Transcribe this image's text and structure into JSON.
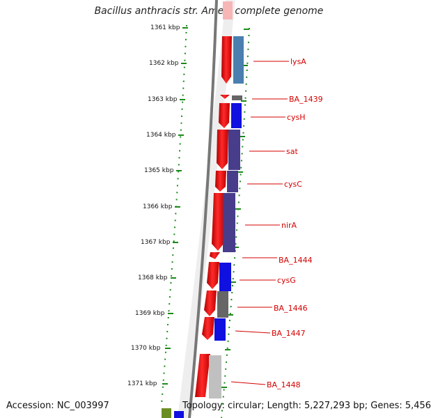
{
  "title": "Bacillus anthracis str. Ames, complete genome",
  "footer": {
    "accession": "Accession: NC_003997",
    "stats": "Topology: circular; Length: 5,227,293 bp; Genes: 5,456"
  },
  "ruler_ticks": [
    "1361 kbp",
    "1362 kbp",
    "1363 kbp",
    "1364 kbp",
    "1365 kbp",
    "1366 kbp",
    "1367 kbp",
    "1368 kbp",
    "1369 kbp",
    "1370 kbp",
    "1371 kbp"
  ],
  "genes": [
    {
      "name": "lysA",
      "color": "#4a7fb0"
    },
    {
      "name": "BA_1439",
      "color": "#666666"
    },
    {
      "name": "cysH",
      "color": "#1010e0"
    },
    {
      "name": "sat",
      "color": "#483d8b"
    },
    {
      "name": "cysC",
      "color": "#483d8b"
    },
    {
      "name": "nirA",
      "color": "#483d8b"
    },
    {
      "name": "BA_1444",
      "color": "#ff0000"
    },
    {
      "name": "cysG",
      "color": "#1010e0"
    },
    {
      "name": "BA_1446",
      "color": "#666666"
    },
    {
      "name": "BA_1447",
      "color": "#1010e0"
    },
    {
      "name": "BA_1448",
      "color": "#b0b0b0"
    }
  ]
}
